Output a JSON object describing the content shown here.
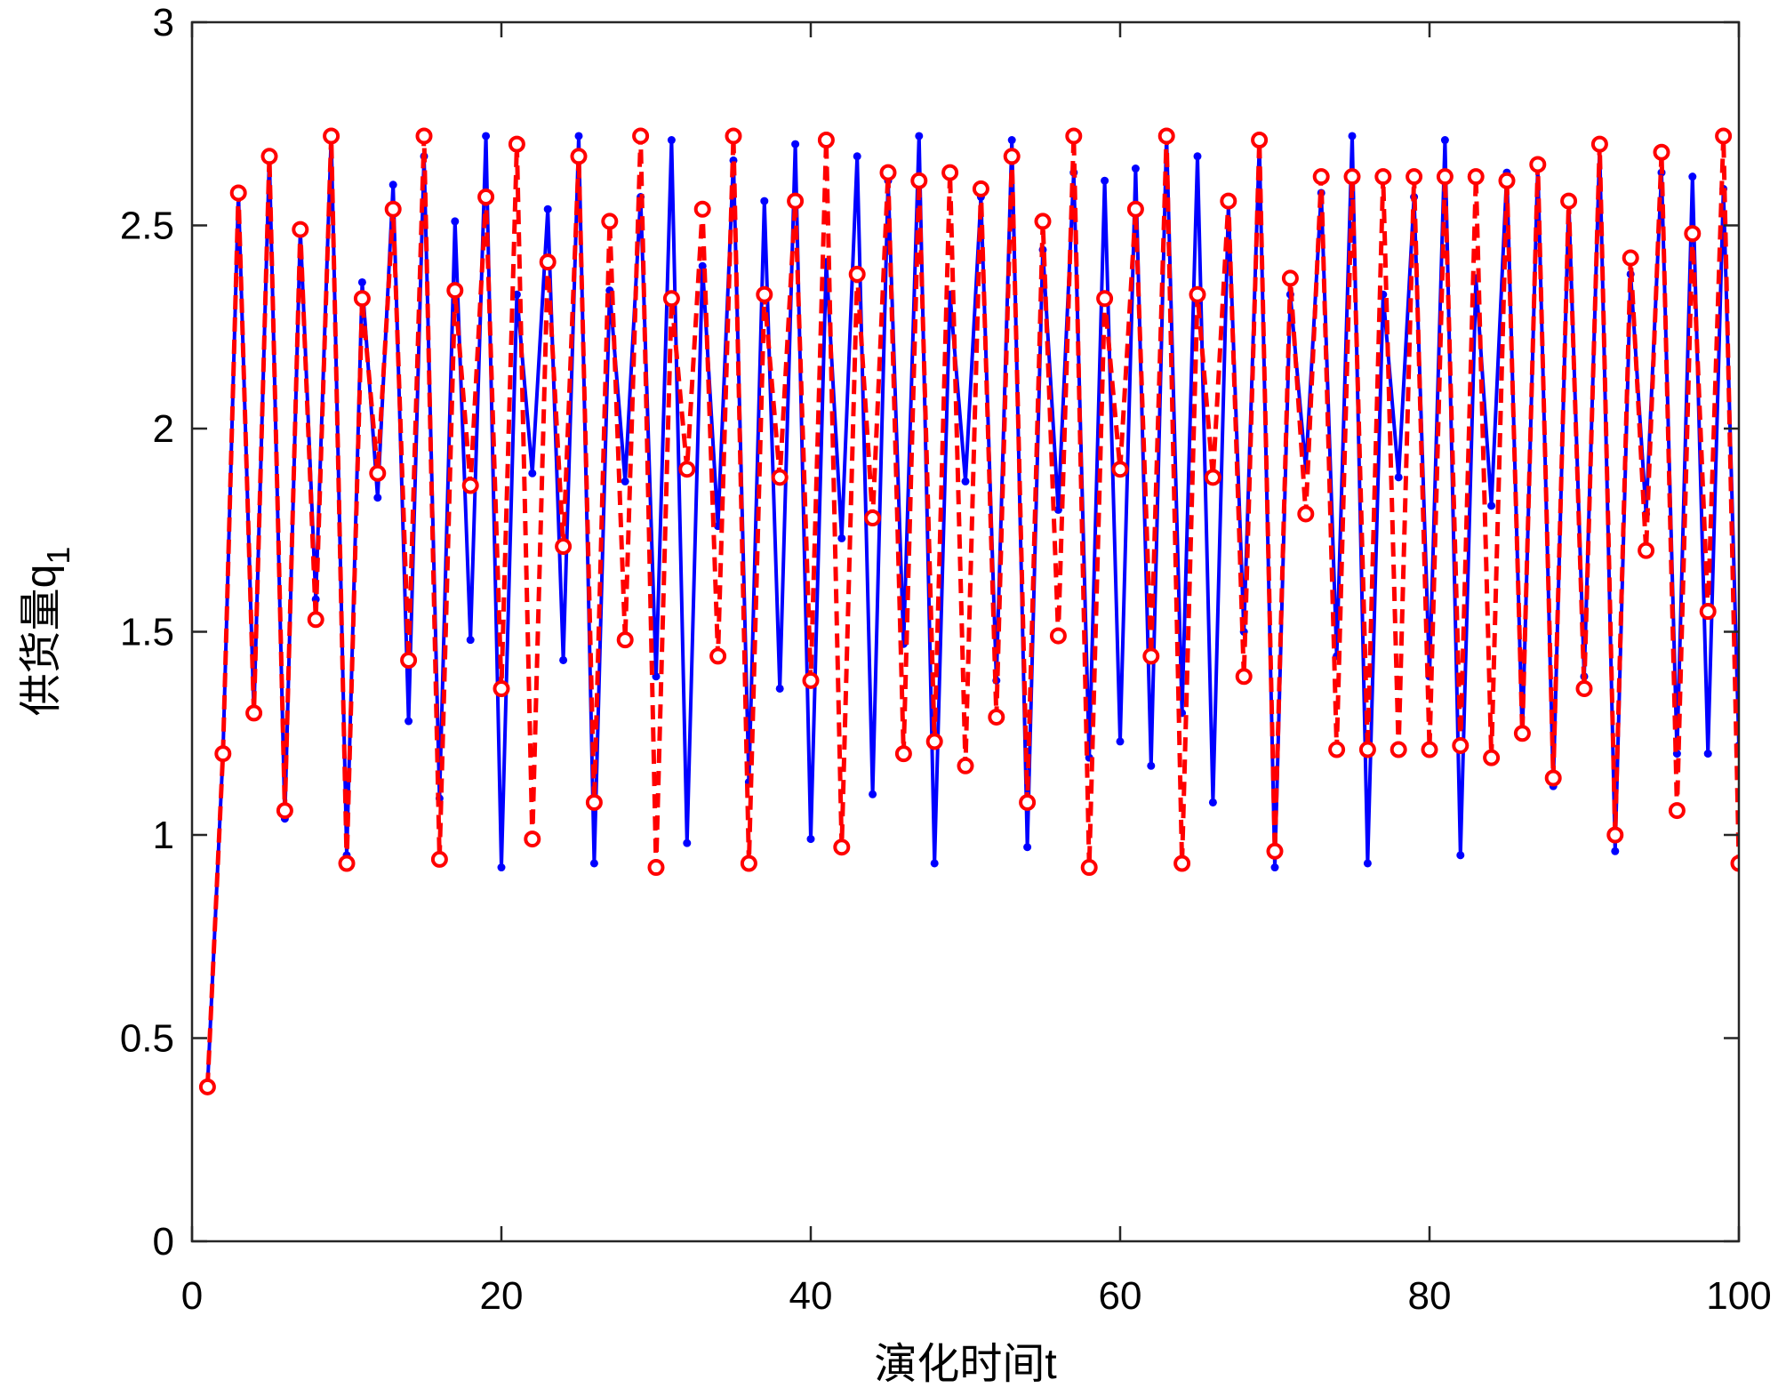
{
  "chart_data": {
    "type": "line",
    "xlabel": "演化时间t",
    "ylabel_main": "供货量q",
    "ylabel_sub": "1",
    "xlim": [
      0,
      100
    ],
    "ylim": [
      0,
      3
    ],
    "x_ticks": [
      0,
      20,
      40,
      60,
      80,
      100
    ],
    "y_ticks": [
      0,
      0.5,
      1,
      1.5,
      2,
      2.5,
      3
    ],
    "grid": false,
    "legend": "none",
    "x": [
      1,
      2,
      3,
      4,
      5,
      6,
      7,
      8,
      9,
      10,
      11,
      12,
      13,
      14,
      15,
      16,
      17,
      18,
      19,
      20,
      21,
      22,
      23,
      24,
      25,
      26,
      27,
      28,
      29,
      30,
      31,
      32,
      33,
      34,
      35,
      36,
      37,
      38,
      39,
      40,
      41,
      42,
      43,
      44,
      45,
      46,
      47,
      48,
      49,
      50,
      51,
      52,
      53,
      54,
      55,
      56,
      57,
      58,
      59,
      60,
      61,
      62,
      63,
      64,
      65,
      66,
      67,
      68,
      69,
      70,
      71,
      72,
      73,
      74,
      75,
      76,
      77,
      78,
      79,
      80,
      81,
      82,
      83,
      84,
      85,
      86,
      87,
      88,
      89,
      90,
      91,
      92,
      93,
      94,
      95,
      96,
      97,
      98,
      99,
      100
    ],
    "series": [
      {
        "style": "solid-dot",
        "color": "#0000ff",
        "values": [
          0.38,
          1.2,
          2.58,
          1.3,
          2.67,
          1.04,
          2.49,
          1.58,
          2.72,
          0.95,
          2.36,
          1.83,
          2.6,
          1.28,
          2.67,
          1.09,
          2.51,
          1.48,
          2.72,
          0.92,
          2.33,
          1.89,
          2.54,
          1.43,
          2.72,
          0.93,
          2.34,
          1.87,
          2.57,
          1.39,
          2.71,
          0.98,
          2.4,
          1.76,
          2.66,
          1.13,
          2.56,
          1.36,
          2.7,
          0.99,
          2.41,
          1.73,
          2.67,
          1.1,
          2.61,
          1.47,
          2.72,
          0.93,
          2.33,
          1.87,
          2.57,
          1.38,
          2.71,
          0.97,
          2.44,
          1.8,
          2.63,
          1.19,
          2.61,
          1.23,
          2.64,
          1.17,
          2.72,
          1.3,
          2.67,
          1.08,
          2.55,
          1.5,
          2.7,
          0.92,
          2.33,
          1.9,
          2.58,
          1.44,
          2.72,
          0.93,
          2.33,
          1.88,
          2.57,
          1.39,
          2.71,
          0.95,
          2.37,
          1.81,
          2.63,
          1.24,
          2.65,
          1.12,
          2.56,
          1.39,
          2.69,
          0.96,
          2.38,
          1.79,
          2.63,
          1.2,
          2.62,
          1.2,
          2.59,
          1.22
        ]
      },
      {
        "style": "dashed-circle",
        "color": "#ff0000",
        "values": [
          0.38,
          1.2,
          2.58,
          1.3,
          2.67,
          1.06,
          2.49,
          1.53,
          2.72,
          0.93,
          2.32,
          1.89,
          2.54,
          1.43,
          2.72,
          0.94,
          2.34,
          1.86,
          2.57,
          1.36,
          2.7,
          0.99,
          2.41,
          1.71,
          2.67,
          1.08,
          2.51,
          1.48,
          2.72,
          0.92,
          2.32,
          1.9,
          2.54,
          1.44,
          2.72,
          0.93,
          2.33,
          1.88,
          2.56,
          1.38,
          2.71,
          0.97,
          2.38,
          1.78,
          2.63,
          1.2,
          2.61,
          1.23,
          2.63,
          1.17,
          2.59,
          1.29,
          2.67,
          1.08,
          2.51,
          1.49,
          2.72,
          0.92,
          2.32,
          1.9,
          2.54,
          1.44,
          2.72,
          0.93,
          2.33,
          1.88,
          2.56,
          1.39,
          2.71,
          0.96,
          2.37,
          1.79,
          2.62,
          1.21,
          2.62,
          1.21,
          2.62,
          1.21,
          2.62,
          1.21,
          2.62,
          1.22,
          2.62,
          1.19,
          2.61,
          1.25,
          2.65,
          1.14,
          2.56,
          1.36,
          2.7,
          1.0,
          2.42,
          1.7,
          2.68,
          1.06,
          2.48,
          1.55,
          2.72,
          0.93
        ]
      }
    ]
  }
}
